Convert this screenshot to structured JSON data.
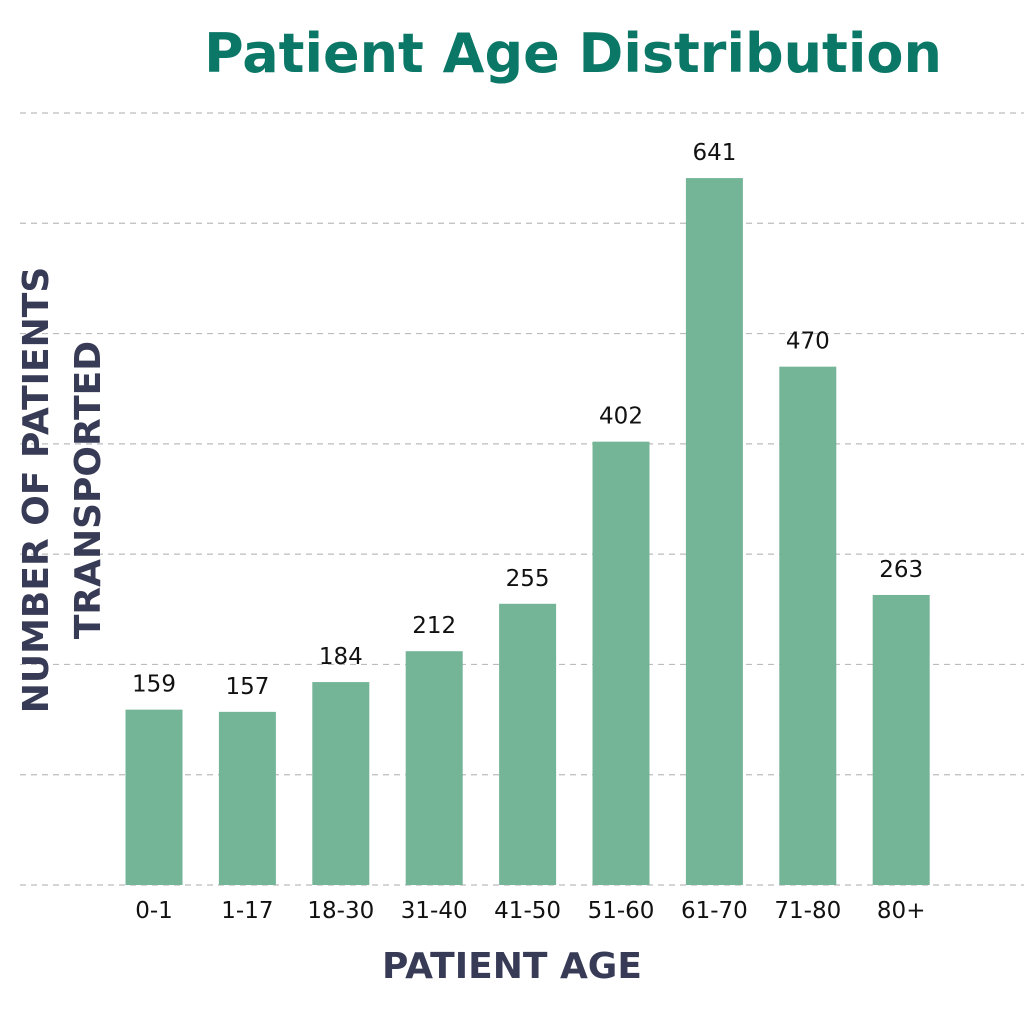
{
  "chart_data": {
    "type": "bar",
    "title": "Patient Age Distribution",
    "xlabel": "PATIENT AGE",
    "ylabel_lines": [
      "NUMBER OF PATIENTS",
      "TRANSPORTED"
    ],
    "categories": [
      "0-1",
      "1-17",
      "18-30",
      "31-40",
      "41-50",
      "51-60",
      "61-70",
      "71-80",
      "80+"
    ],
    "values": [
      159,
      157,
      184,
      212,
      255,
      402,
      641,
      470,
      263
    ],
    "ylim": [
      0,
      700
    ],
    "grid": true,
    "legend": "none",
    "colors": {
      "bar": "#74b598",
      "title": "#0b7766",
      "axis_title": "#383b55",
      "gridline": "#bcbcbc"
    }
  }
}
